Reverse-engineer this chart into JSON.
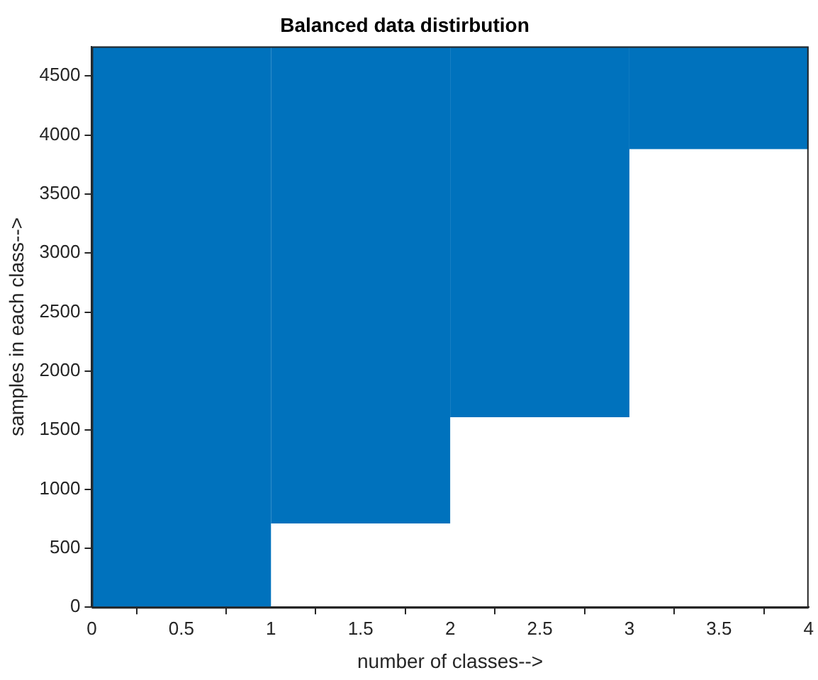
{
  "chart_data": {
    "type": "bar",
    "title": "Balanced data distirbution",
    "xlabel": "number of classes-->",
    "ylabel": "samples in each class-->",
    "x": [
      0.5,
      1.5,
      2.5,
      3.5
    ],
    "base": [
      0,
      710,
      1610,
      3880
    ],
    "values": [
      4750,
      4040,
      3140,
      870
    ],
    "color": "#0072bd",
    "xlim": [
      0,
      4
    ],
    "xticks": [
      0,
      0.5,
      1,
      1.5,
      2,
      2.5,
      3,
      3.5,
      4
    ],
    "ylim": [
      0,
      4750
    ],
    "yticks": [
      0,
      500,
      1000,
      1500,
      2000,
      2500,
      3000,
      3500,
      4000,
      4500
    ],
    "grid": false,
    "legend": false
  }
}
